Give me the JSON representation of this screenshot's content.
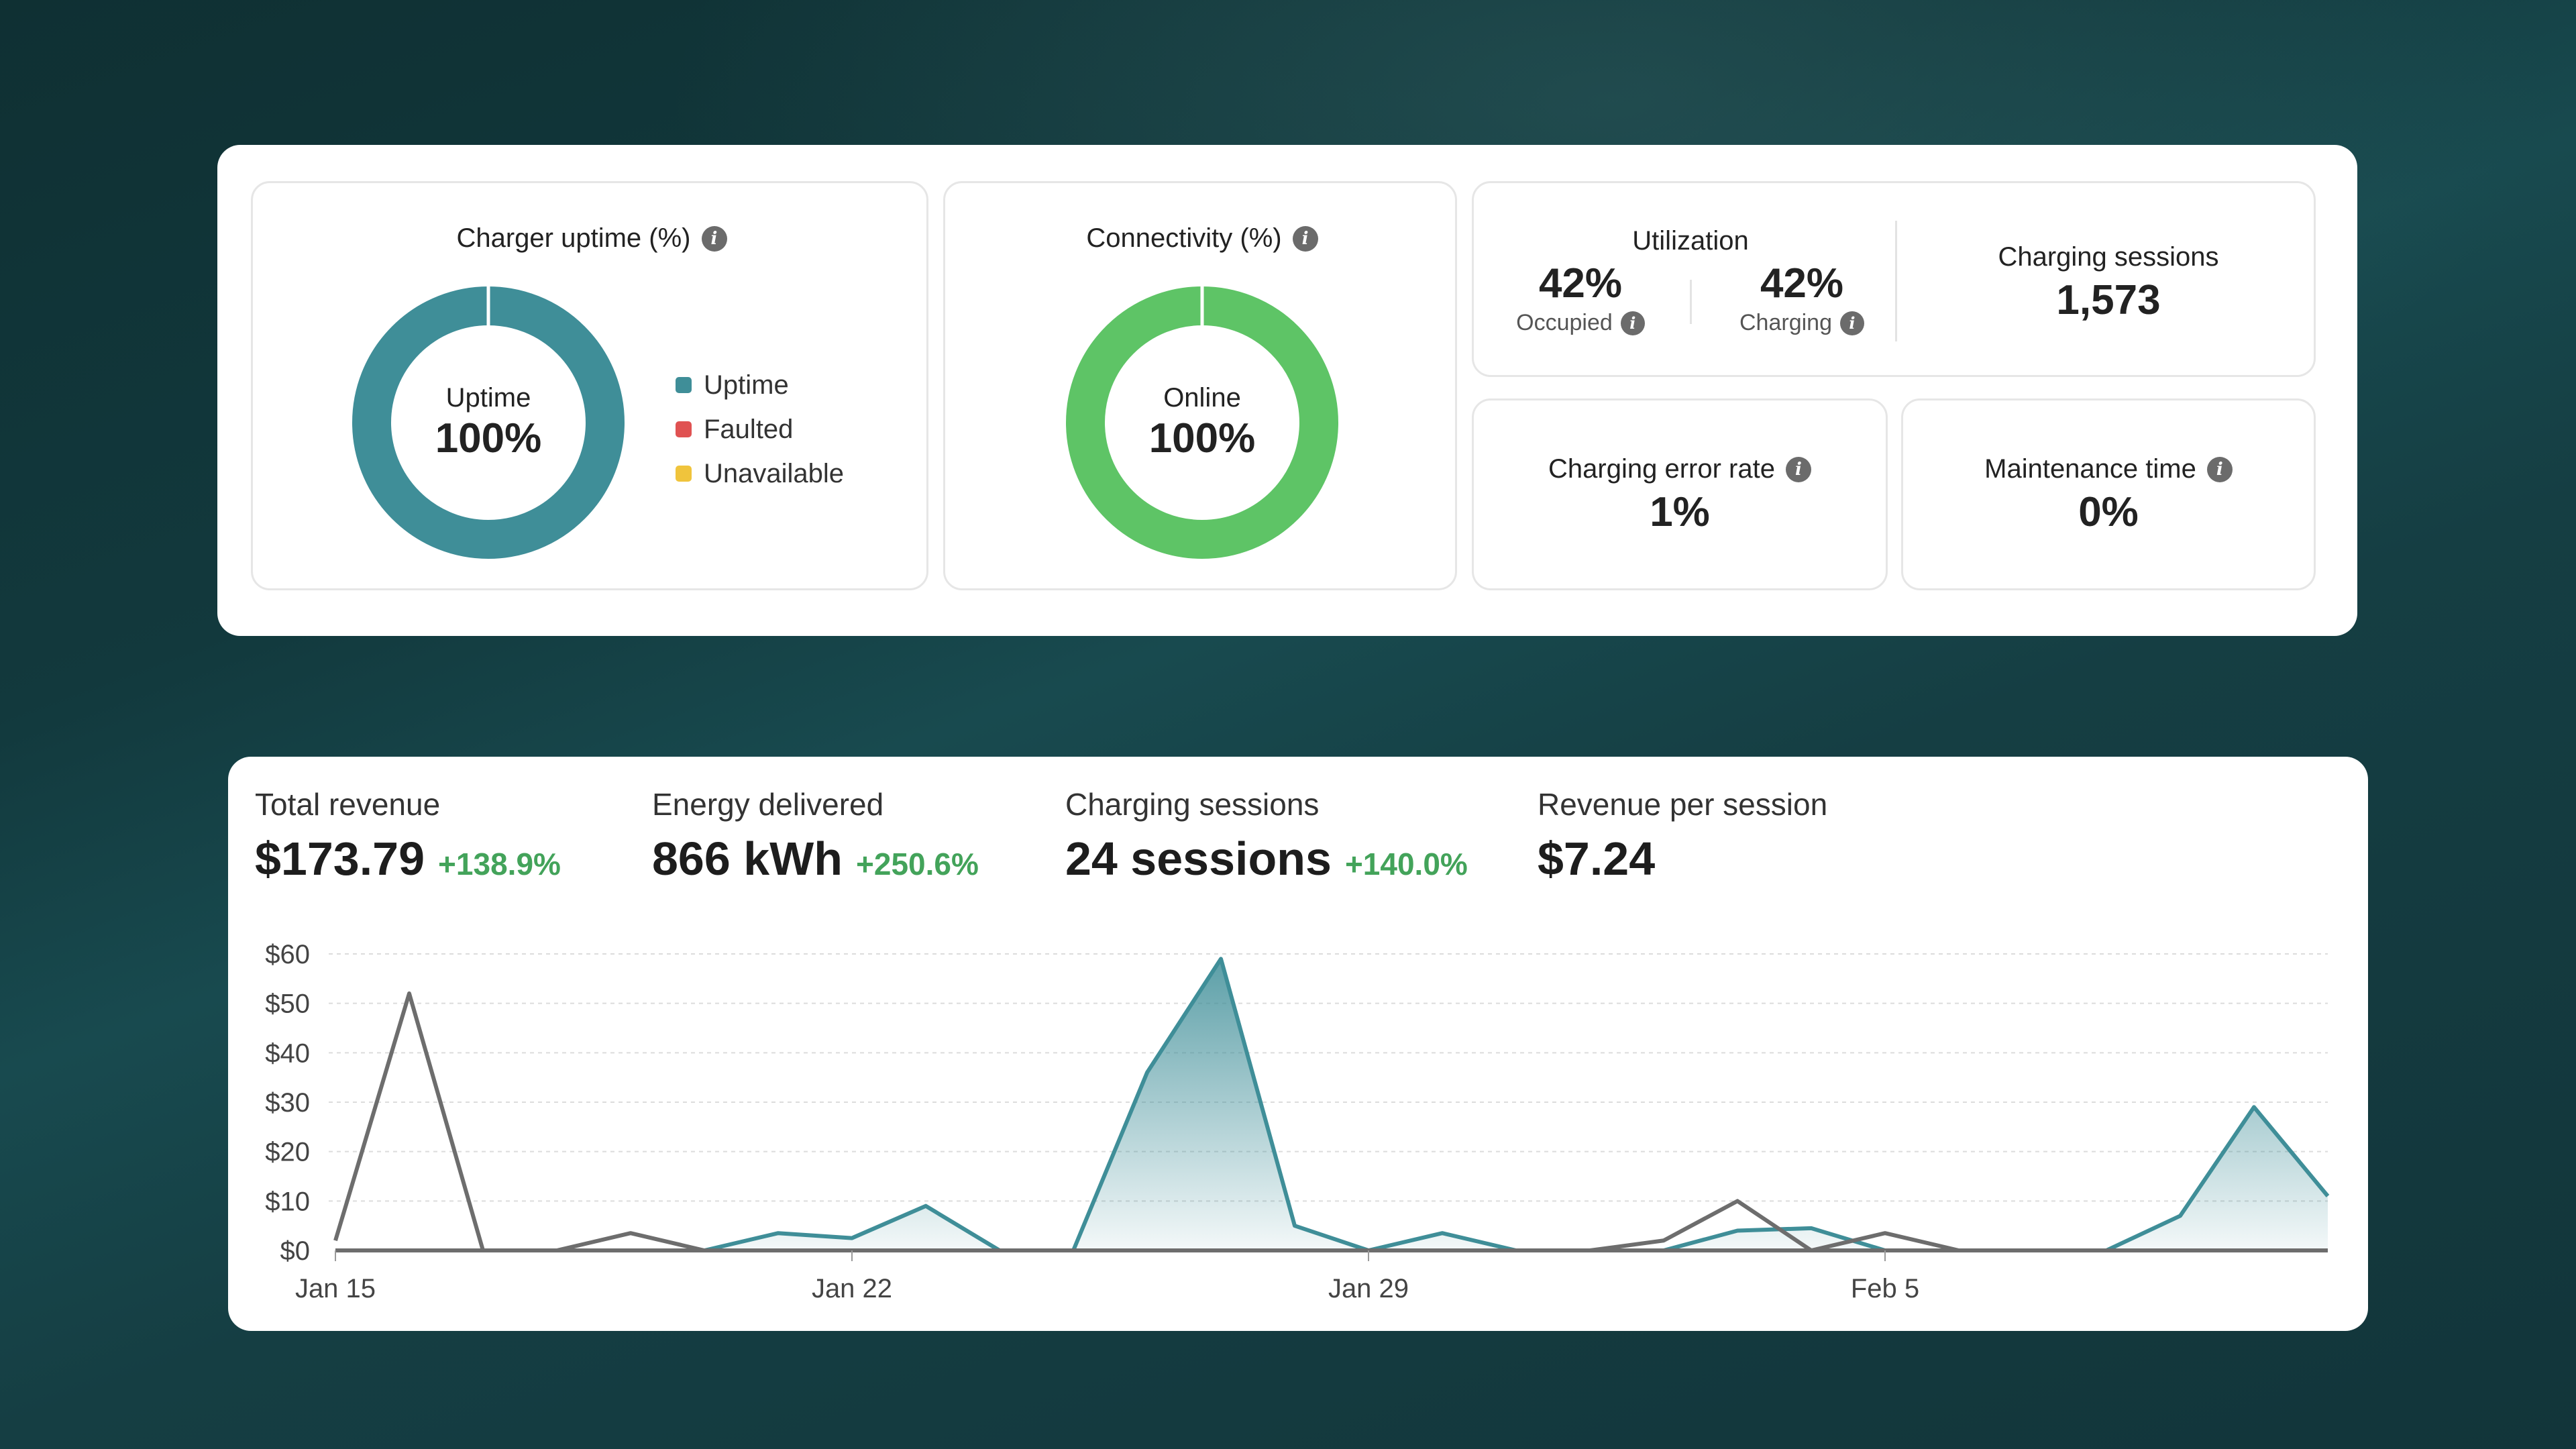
{
  "overview": {
    "uptime": {
      "title": "Charger uptime (%)",
      "center_label": "Uptime",
      "center_value": "100%",
      "value": 100,
      "legend": [
        {
          "label": "Uptime",
          "color": "#3f8e98"
        },
        {
          "label": "Faulted",
          "color": "#e05252"
        },
        {
          "label": "Unavailable",
          "color": "#f0c43c"
        }
      ],
      "ring_color": "#3f8e98"
    },
    "connectivity": {
      "title": "Connectivity (%)",
      "center_label": "Online",
      "center_value": "100%",
      "value": 100,
      "ring_color": "#5ec466"
    },
    "utilization": {
      "title": "Utilization",
      "occupied_value": "42%",
      "occupied_label": "Occupied",
      "charging_value": "42%",
      "charging_label": "Charging"
    },
    "charging_sessions": {
      "title": "Charging sessions",
      "value": "1,573"
    },
    "error_rate": {
      "title": "Charging error rate",
      "value": "1%"
    },
    "maintenance": {
      "title": "Maintenance time",
      "value": "0%"
    }
  },
  "metrics": [
    {
      "label": "Total revenue",
      "value": "$173.79",
      "delta": "+138.9%"
    },
    {
      "label": "Energy delivered",
      "value": "866 kWh",
      "delta": "+250.6%"
    },
    {
      "label": "Charging sessions",
      "value": "24 sessions",
      "delta": "+140.0%"
    },
    {
      "label": "Revenue per session",
      "value": "$7.24",
      "delta": ""
    }
  ],
  "chart_data": {
    "type": "area",
    "x_tick_labels": [
      "Jan 15",
      "Jan 22",
      "Jan 29",
      "Feb 5"
    ],
    "x_tick_index": [
      0,
      7,
      14,
      21
    ],
    "y_tick_labels": [
      "$0",
      "$10",
      "$20",
      "$30",
      "$40",
      "$50",
      "$60"
    ],
    "ylim": [
      0,
      60
    ],
    "grid": true,
    "series": [
      {
        "color": "#3f8e98",
        "filled": true,
        "values": [
          0,
          0,
          0,
          0,
          0,
          0,
          3.5,
          2.5,
          9,
          0,
          0,
          36,
          59,
          5,
          0,
          3.5,
          0,
          0,
          0,
          4,
          4.5,
          0,
          0,
          0,
          0,
          7,
          29,
          11
        ]
      },
      {
        "color": "#6d6d6d",
        "filled": false,
        "values": [
          2,
          52,
          0,
          0,
          3.5,
          0,
          0,
          0,
          0,
          0,
          0,
          0,
          0,
          0,
          0,
          0,
          0,
          0,
          2,
          10,
          0,
          3.5,
          0,
          0,
          0,
          0,
          0,
          0
        ]
      }
    ]
  }
}
